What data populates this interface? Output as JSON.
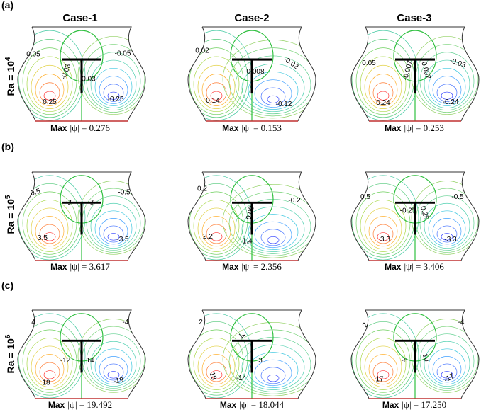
{
  "columns": [
    "Case-1",
    "Case-2",
    "Case-3"
  ],
  "max_label": "Max",
  "rows": [
    {
      "tag": "(a)",
      "ra": "Ra = 10",
      "exponent": "4",
      "panels": [
        {
          "contour_labels": [
            "0.05",
            "-0.03",
            "0.03",
            "0.25",
            "-0.05",
            "-0.25"
          ],
          "max_value": "|ψ| = 0.276"
        },
        {
          "contour_labels": [
            "0.02",
            "0.008",
            "-0.02",
            "0.14",
            "-0.12"
          ],
          "max_value": "|ψ| = 0.153"
        },
        {
          "contour_labels": [
            "0.05",
            "-0.007",
            "0.007",
            "-0.05",
            "0.24",
            "-0.24"
          ],
          "max_value": "|ψ| = 0.253"
        }
      ]
    },
    {
      "tag": "(b)",
      "ra": "Ra = 10",
      "exponent": "5",
      "panels": [
        {
          "contour_labels": [
            "0.5",
            "-1",
            "1",
            "3.5",
            "-0.5",
            "-3.5"
          ],
          "max_value": "|ψ| = 3.617"
        },
        {
          "contour_labels": [
            "0.2",
            "0.09",
            "-0.2",
            "2.2",
            "-1.4"
          ],
          "max_value": "|ψ| = 2.356"
        },
        {
          "contour_labels": [
            "0.5",
            "-0.25",
            "0.25",
            "-0.5",
            "3.3",
            "-3.3"
          ],
          "max_value": "|ψ| = 3.406"
        }
      ]
    },
    {
      "tag": "(c)",
      "ra": "Ra = 10",
      "exponent": "6",
      "panels": [
        {
          "contour_labels": [
            "4",
            "-12",
            "14",
            "18",
            "-4",
            "-19"
          ],
          "max_value": "|ψ| = 19.492"
        },
        {
          "contour_labels": [
            "2",
            "-4",
            "3",
            "18",
            "-14"
          ],
          "max_value": "|ψ| = 18.044"
        },
        {
          "contour_labels": [
            "2",
            "-8",
            "10",
            "-4",
            "17",
            "-17"
          ],
          "max_value": "|ψ| = 17.250"
        }
      ]
    }
  ]
}
